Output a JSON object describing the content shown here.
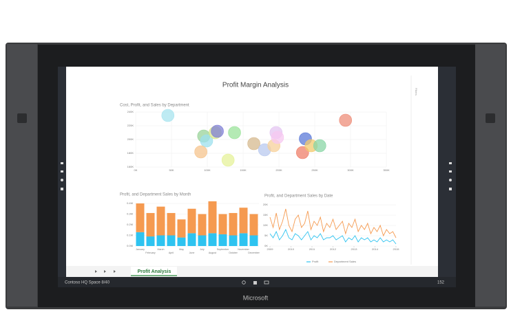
{
  "brand": "Microsoft",
  "screen": {
    "report_title": "Profit Margin Analysis",
    "filters_label": "Filters",
    "tab": "Profit Analysis",
    "taskbar_title": "Contoso HQ Space 8/40",
    "clock": "152"
  },
  "chart_data": [
    {
      "type": "scatter",
      "title": "Cost, Profit, and Sales by Department",
      "x": [
        45,
        95,
        99,
        111,
        114,
        138,
        91,
        129,
        165,
        180,
        193,
        196,
        198,
        237,
        233,
        245,
        257,
        293
      ],
      "values": [
        235,
        205,
        198,
        210,
        212,
        210,
        182,
        170,
        194,
        185,
        191,
        210,
        203,
        201,
        181,
        191,
        191,
        228
      ],
      "colors": [
        "#a8e4ef",
        "#9ad39a",
        "#9ee0ee",
        "#d9e88c",
        "#7f7fd6",
        "#9be39b",
        "#f6c48d",
        "#e5f29a",
        "#d6b98f",
        "#b9c9ef",
        "#f7d09a",
        "#e4c6f2",
        "#f7c8f0",
        "#5b79d8",
        "#ef7f6a",
        "#f3c96d",
        "#89d6a6",
        "#ee8e7a"
      ],
      "xlim": [
        0,
        350
      ],
      "ylim": [
        160,
        240
      ],
      "xticks": [
        {
          "value": 0,
          "label": "0K"
        },
        {
          "value": 50,
          "label": "50K"
        },
        {
          "value": 100,
          "label": "100K"
        },
        {
          "value": 150,
          "label": "150K"
        },
        {
          "value": 200,
          "label": "200K"
        },
        {
          "value": 250,
          "label": "250K"
        },
        {
          "value": 300,
          "label": "300K"
        },
        {
          "value": 350,
          "label": "350K"
        }
      ],
      "yticks": [
        {
          "value": 160,
          "label": "160K"
        },
        {
          "value": 180,
          "label": "180K"
        },
        {
          "value": 200,
          "label": "200K"
        },
        {
          "value": 220,
          "label": "220K"
        },
        {
          "value": 240,
          "label": "240K"
        }
      ],
      "grid": true
    },
    {
      "type": "stacked_bar",
      "title": "Profit, and Department Sales by Month",
      "categories": [
        "January",
        "February",
        "March",
        "April",
        "May",
        "June",
        "July",
        "August",
        "September",
        "October",
        "November",
        "December"
      ],
      "series": [
        {
          "name": "Profit",
          "color": "#2ec3f0",
          "values": [
            0.13,
            0.09,
            0.1,
            0.1,
            0.08,
            0.12,
            0.1,
            0.12,
            0.11,
            0.1,
            0.12,
            0.1
          ]
        },
        {
          "name": "Department Sales",
          "color": "#f59a50",
          "values": [
            0.27,
            0.22,
            0.27,
            0.21,
            0.17,
            0.23,
            0.2,
            0.3,
            0.19,
            0.21,
            0.24,
            0.2
          ]
        }
      ],
      "ylim": [
        0,
        0.4
      ],
      "yticks": [
        {
          "value": 0,
          "label": "0.0M"
        },
        {
          "value": 0.1,
          "label": "0.1M"
        },
        {
          "value": 0.2,
          "label": "0.2M"
        },
        {
          "value": 0.3,
          "label": "0.3M"
        },
        {
          "value": 0.4,
          "label": "0.4M"
        }
      ]
    },
    {
      "type": "line",
      "title": "Profit, and Department Sales by Date",
      "x": [
        2009,
        2009.15,
        2009.3,
        2009.45,
        2009.6,
        2009.75,
        2009.9,
        2010.05,
        2010.2,
        2010.35,
        2010.5,
        2010.65,
        2010.8,
        2010.95,
        2011.1,
        2011.25,
        2011.4,
        2011.55,
        2011.7,
        2011.85,
        2012,
        2012.15,
        2012.3,
        2012.45,
        2012.6,
        2012.75,
        2012.9,
        2013.05,
        2013.2,
        2013.35,
        2013.5,
        2013.65,
        2013.8,
        2013.95,
        2014.1,
        2014.25,
        2014.4,
        2014.55,
        2014.7,
        2014.85,
        2015
      ],
      "series": [
        {
          "name": "Profit",
          "color": "#2ec3f0",
          "values": [
            6,
            4,
            7,
            3,
            5,
            8,
            4,
            3,
            6,
            5,
            3,
            5,
            7,
            3,
            5,
            4,
            6,
            3,
            4,
            4,
            5,
            3,
            4,
            5,
            2,
            4,
            3,
            5,
            2,
            4,
            3,
            4,
            2,
            3,
            2,
            4,
            2,
            3,
            2,
            3,
            1
          ]
        },
        {
          "name": "Department Sales",
          "color": "#f59a50",
          "values": [
            14,
            9,
            16,
            8,
            12,
            18,
            10,
            7,
            13,
            15,
            9,
            11,
            17,
            8,
            12,
            10,
            14,
            7,
            11,
            9,
            13,
            8,
            10,
            12,
            6,
            11,
            9,
            13,
            7,
            10,
            8,
            11,
            6,
            9,
            7,
            10,
            5,
            8,
            6,
            7,
            4
          ]
        }
      ],
      "xlim": [
        2009,
        2015
      ],
      "xticks": [
        2009,
        2010,
        2011,
        2012,
        2013,
        2014,
        2015
      ],
      "ylim": [
        0,
        20
      ],
      "yticks": [
        {
          "value": 0,
          "label": "0K"
        },
        {
          "value": 5,
          "label": "5K"
        },
        {
          "value": 10,
          "label": "10K"
        },
        {
          "value": 15,
          "label": "15K"
        },
        {
          "value": 20,
          "label": "20K"
        }
      ],
      "legend": "bottom"
    }
  ]
}
